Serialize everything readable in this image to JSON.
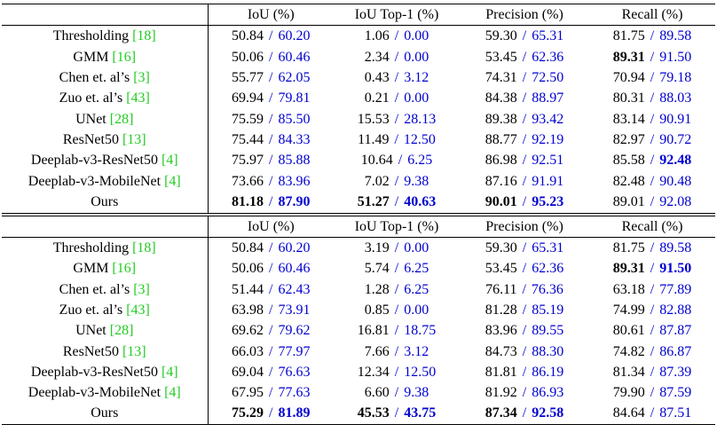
{
  "separator": "/",
  "tables": [
    {
      "header": [
        "IoU (%)",
        "IoU Top-1 (%)",
        "Precision (%)",
        "Recall (%)"
      ],
      "rows": [
        {
          "method": "Thresholding",
          "cite": "[18]",
          "cells": [
            [
              "50.84",
              "60.20"
            ],
            [
              "1.06",
              "0.00"
            ],
            [
              "59.30",
              "65.31"
            ],
            [
              "81.75",
              "89.58"
            ]
          ]
        },
        {
          "method": "GMM",
          "cite": "[16]",
          "cells": [
            [
              "50.06",
              "60.46"
            ],
            [
              "2.34",
              "0.00"
            ],
            [
              "53.45",
              "62.36"
            ],
            [
              "89.31",
              "91.50"
            ]
          ],
          "bold": [
            [
              false,
              false
            ],
            [
              false,
              false
            ],
            [
              false,
              false
            ],
            [
              true,
              false
            ]
          ]
        },
        {
          "method": "Chen et. al’s",
          "cite": "[3]",
          "cells": [
            [
              "55.77",
              "62.05"
            ],
            [
              "0.43",
              "3.12"
            ],
            [
              "74.31",
              "72.50"
            ],
            [
              "70.94",
              "79.18"
            ]
          ]
        },
        {
          "method": "Zuo et. al’s",
          "cite": "[43]",
          "cells": [
            [
              "69.94",
              "79.81"
            ],
            [
              "0.21",
              "0.00"
            ],
            [
              "84.38",
              "88.97"
            ],
            [
              "80.31",
              "88.03"
            ]
          ]
        },
        {
          "method": "UNet",
          "cite": "[28]",
          "cells": [
            [
              "75.59",
              "85.50"
            ],
            [
              "15.53",
              "28.13"
            ],
            [
              "89.38",
              "93.42"
            ],
            [
              "83.14",
              "90.91"
            ]
          ]
        },
        {
          "method": "ResNet50",
          "cite": "[13]",
          "cells": [
            [
              "75.44",
              "84.33"
            ],
            [
              "11.49",
              "12.50"
            ],
            [
              "88.77",
              "92.19"
            ],
            [
              "82.97",
              "90.72"
            ]
          ]
        },
        {
          "method": "Deeplab-v3-ResNet50",
          "cite": "[4]",
          "cells": [
            [
              "75.97",
              "85.88"
            ],
            [
              "10.64",
              "6.25"
            ],
            [
              "86.98",
              "92.51"
            ],
            [
              "85.58",
              "92.48"
            ]
          ],
          "bold": [
            [
              false,
              false
            ],
            [
              false,
              false
            ],
            [
              false,
              false
            ],
            [
              false,
              true
            ]
          ]
        },
        {
          "method": "Deeplab-v3-MobileNet",
          "cite": "[4]",
          "cells": [
            [
              "73.66",
              "83.96"
            ],
            [
              "7.02",
              "9.38"
            ],
            [
              "87.16",
              "91.91"
            ],
            [
              "82.48",
              "90.48"
            ]
          ]
        },
        {
          "method": "Ours",
          "cells": [
            [
              "81.18",
              "87.90"
            ],
            [
              "51.27",
              "40.63"
            ],
            [
              "90.01",
              "95.23"
            ],
            [
              "89.01",
              "92.08"
            ]
          ],
          "bold": [
            [
              true,
              true
            ],
            [
              true,
              true
            ],
            [
              true,
              true
            ],
            [
              false,
              false
            ]
          ]
        }
      ]
    },
    {
      "header": [
        "IoU (%)",
        "IoU Top-1 (%)",
        "Precision (%)",
        "Recall (%)"
      ],
      "rows": [
        {
          "method": "Thresholding",
          "cite": "[18]",
          "cells": [
            [
              "50.84",
              "60.20"
            ],
            [
              "3.19",
              "0.00"
            ],
            [
              "59.30",
              "65.31"
            ],
            [
              "81.75",
              "89.58"
            ]
          ]
        },
        {
          "method": "GMM",
          "cite": "[16]",
          "cells": [
            [
              "50.06",
              "60.46"
            ],
            [
              "5.74",
              "6.25"
            ],
            [
              "53.45",
              "62.36"
            ],
            [
              "89.31",
              "91.50"
            ]
          ],
          "bold": [
            [
              false,
              false
            ],
            [
              false,
              false
            ],
            [
              false,
              false
            ],
            [
              true,
              true
            ]
          ]
        },
        {
          "method": "Chen et. al’s",
          "cite": "[3]",
          "cells": [
            [
              "51.44",
              "62.43"
            ],
            [
              "1.28",
              "6.25"
            ],
            [
              "76.11",
              "76.36"
            ],
            [
              "63.18",
              "77.89"
            ]
          ]
        },
        {
          "method": "Zuo et. al’s",
          "cite": "[43]",
          "cells": [
            [
              "63.98",
              "73.91"
            ],
            [
              "0.85",
              "0.00"
            ],
            [
              "81.28",
              "85.19"
            ],
            [
              "74.99",
              "82.88"
            ]
          ]
        },
        {
          "method": "UNet",
          "cite": "[28]",
          "cells": [
            [
              "69.62",
              "79.62"
            ],
            [
              "16.81",
              "18.75"
            ],
            [
              "83.96",
              "89.55"
            ],
            [
              "80.61",
              "87.87"
            ]
          ]
        },
        {
          "method": "ResNet50",
          "cite": "[13]",
          "cells": [
            [
              "66.03",
              "77.97"
            ],
            [
              "7.66",
              "3.12"
            ],
            [
              "84.73",
              "88.30"
            ],
            [
              "74.82",
              "86.87"
            ]
          ]
        },
        {
          "method": "Deeplab-v3-ResNet50",
          "cite": "[4]",
          "cells": [
            [
              "69.04",
              "76.63"
            ],
            [
              "12.34",
              "12.50"
            ],
            [
              "81.81",
              "86.19"
            ],
            [
              "81.34",
              "87.39"
            ]
          ]
        },
        {
          "method": "Deeplab-v3-MobileNet",
          "cite": "[4]",
          "cells": [
            [
              "67.95",
              "77.63"
            ],
            [
              "6.60",
              "9.38"
            ],
            [
              "81.92",
              "86.93"
            ],
            [
              "79.90",
              "87.59"
            ]
          ]
        },
        {
          "method": "Ours",
          "cells": [
            [
              "75.29",
              "81.89"
            ],
            [
              "45.53",
              "43.75"
            ],
            [
              "87.34",
              "92.58"
            ],
            [
              "84.64",
              "87.51"
            ]
          ],
          "bold": [
            [
              true,
              true
            ],
            [
              true,
              true
            ],
            [
              true,
              true
            ],
            [
              false,
              false
            ]
          ]
        }
      ]
    }
  ]
}
